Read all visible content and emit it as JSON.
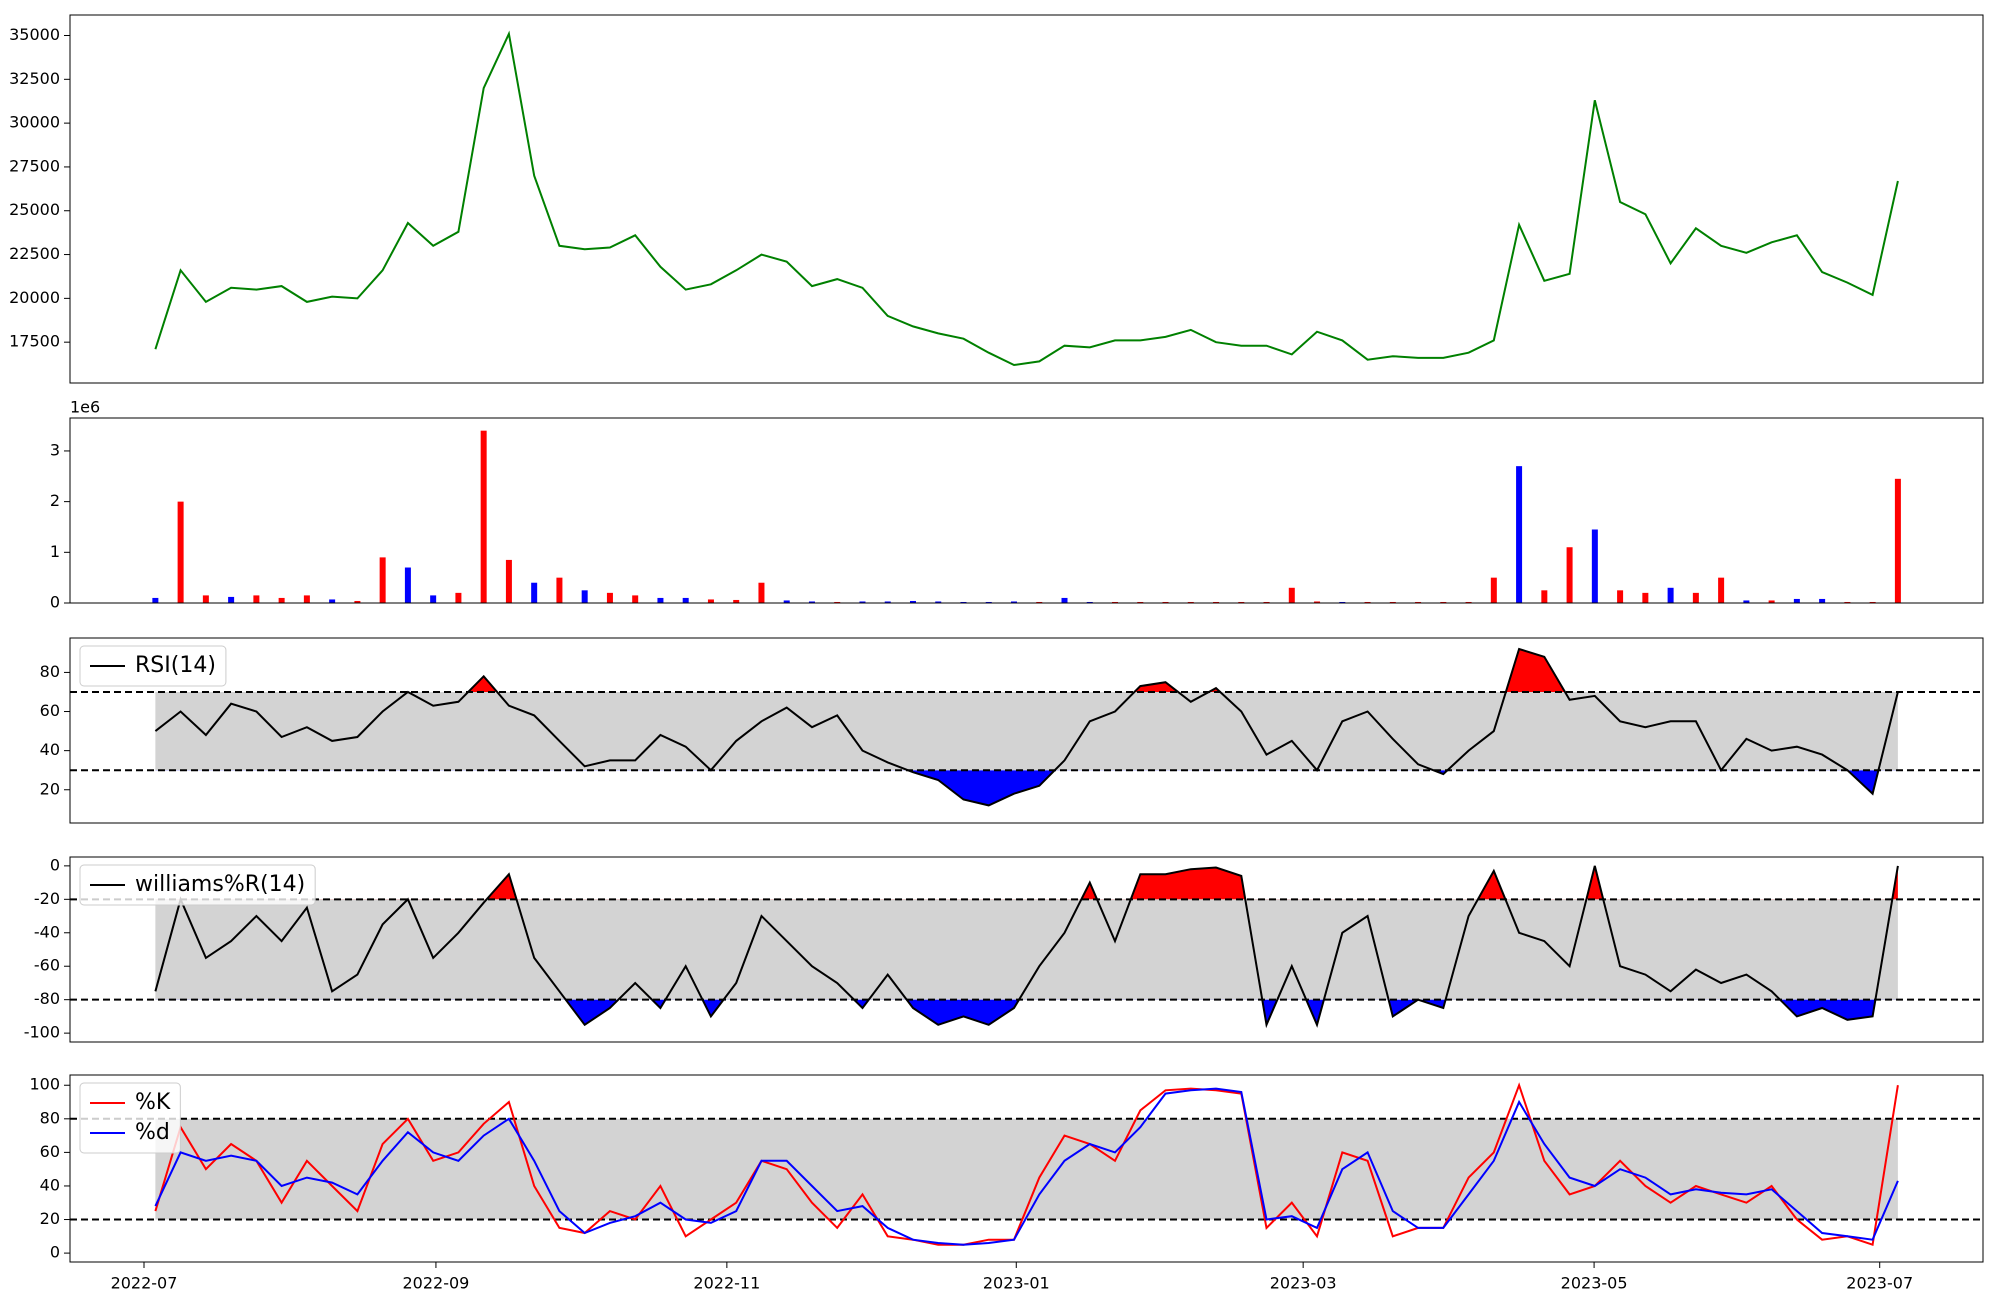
{
  "chart_data": [
    {
      "type": "line",
      "xlim": [
        -3.38,
        72.37
      ],
      "ylim": [
        15170,
        36170
      ],
      "yticks": [
        17500,
        20000,
        22500,
        25000,
        27500,
        30000,
        32500,
        35000
      ],
      "series": [
        {
          "color": "green",
          "values": [
            17100,
            21600,
            19800,
            20600,
            20500,
            20700,
            19800,
            20100,
            20000,
            21600,
            24300,
            23000,
            23800,
            32000,
            35100,
            27000,
            23000,
            22800,
            22900,
            23600,
            21800,
            20500,
            20800,
            21600,
            22500,
            22100,
            20700,
            21100,
            20600,
            19000,
            18400,
            18000,
            17700,
            16900,
            16200,
            16400,
            17300,
            17200,
            17600,
            17600,
            17800,
            18200,
            17500,
            17300,
            17300,
            16800,
            18100,
            17600,
            16500,
            16700,
            16600,
            16600,
            16900,
            17600,
            24200,
            21000,
            21400,
            31300,
            25500,
            24800,
            22000,
            24000,
            23000,
            22600,
            23200,
            23600,
            21500,
            20900,
            20200,
            26700
          ]
        }
      ]
    },
    {
      "type": "bar",
      "xlim": [
        -3.38,
        72.37
      ],
      "ylim": [
        0,
        3650000
      ],
      "offset_label": "1e6",
      "yticks": [
        0,
        {
          "value": 1000000,
          "label": "1"
        },
        {
          "value": 2000000,
          "label": "2"
        },
        {
          "value": 3000000,
          "label": "3"
        }
      ],
      "values": [
        100000,
        2000000,
        150000,
        120000,
        150000,
        100000,
        150000,
        70000,
        40000,
        900000,
        700000,
        150000,
        200000,
        3400000,
        850000,
        400000,
        500000,
        250000,
        200000,
        150000,
        100000,
        100000,
        70000,
        60000,
        400000,
        50000,
        30000,
        20000,
        30000,
        30000,
        40000,
        30000,
        20000,
        20000,
        30000,
        20000,
        100000,
        20000,
        20000,
        20000,
        20000,
        20000,
        20000,
        20000,
        20000,
        300000,
        30000,
        20000,
        20000,
        20000,
        20000,
        20000,
        20000,
        500000,
        2700000,
        250000,
        1100000,
        1450000,
        250000,
        200000,
        300000,
        200000,
        500000,
        50000,
        50000,
        80000,
        80000,
        20000,
        20000,
        2450000
      ],
      "colors": [
        "blue",
        "red",
        "red",
        "blue",
        "red",
        "red",
        "red",
        "blue",
        "red",
        "red",
        "blue",
        "blue",
        "red",
        "red",
        "red",
        "blue",
        "red",
        "blue",
        "red",
        "red",
        "blue",
        "blue",
        "red",
        "red",
        "red",
        "blue",
        "blue",
        "red",
        "blue",
        "blue",
        "blue",
        "blue",
        "blue",
        "blue",
        "blue",
        "red",
        "blue",
        "blue",
        "red",
        "red",
        "red",
        "red",
        "red",
        "red",
        "red",
        "red",
        "red",
        "blue",
        "red",
        "red",
        "red",
        "red",
        "red",
        "red",
        "blue",
        "red",
        "red",
        "blue",
        "red",
        "red",
        "blue",
        "red",
        "red",
        "blue",
        "red",
        "blue",
        "blue",
        "red",
        "red",
        "red"
      ]
    },
    {
      "type": "oscillator",
      "xlim": [
        -3.38,
        72.37
      ],
      "ylim": [
        3,
        97.6
      ],
      "yticks": [
        20,
        40,
        60,
        80
      ],
      "upper": 70,
      "lower": 30,
      "above_color": "red",
      "below_color": "blue",
      "band_color": "lightgray",
      "legend": "upper left",
      "series": [
        {
          "name": "RSI(14)",
          "color": "black",
          "values": [
            50,
            60,
            48,
            64,
            60,
            47,
            52,
            45,
            47,
            60,
            70,
            63,
            65,
            78,
            63,
            58,
            45,
            32,
            35,
            35,
            48,
            42,
            30,
            45,
            55,
            62,
            52,
            58,
            40,
            34,
            29,
            25,
            15,
            12,
            18,
            22,
            35,
            55,
            60,
            73,
            75,
            65,
            72,
            60,
            38,
            45,
            30,
            55,
            60,
            46,
            33,
            28,
            40,
            50,
            92,
            88,
            66,
            68,
            55,
            52,
            55,
            55,
            30,
            46,
            40,
            42,
            38,
            30,
            18,
            70
          ]
        }
      ]
    },
    {
      "type": "oscillator",
      "xlim": [
        -3.38,
        72.37
      ],
      "ylim": [
        -105.3,
        5.3
      ],
      "yticks": [
        -100,
        -80,
        -60,
        -40,
        -20,
        0
      ],
      "upper": -20,
      "lower": -80,
      "above_color": "red",
      "below_color": "blue",
      "band_color": "lightgray",
      "legend": "upper left",
      "series": [
        {
          "name": "williams%R(14)",
          "color": "black",
          "values": [
            -75,
            -20,
            -55,
            -45,
            -30,
            -45,
            -25,
            -75,
            -65,
            -35,
            -20,
            -55,
            -40,
            -22,
            -5,
            -55,
            -75,
            -95,
            -85,
            -70,
            -85,
            -60,
            -90,
            -70,
            -30,
            -45,
            -60,
            -70,
            -85,
            -65,
            -85,
            -95,
            -90,
            -95,
            -85,
            -60,
            -40,
            -10,
            -45,
            -5,
            -5,
            -2,
            -1,
            -6,
            -95,
            -60,
            -95,
            -40,
            -30,
            -90,
            -80,
            -85,
            -30,
            -3,
            -40,
            -45,
            -60,
            0,
            -60,
            -65,
            -75,
            -62,
            -70,
            -65,
            -75,
            -90,
            -85,
            -92,
            -90,
            0
          ]
        }
      ]
    },
    {
      "type": "oscillator",
      "xlim": [
        -3.38,
        72.37
      ],
      "ylim": [
        -5.3,
        106.1
      ],
      "yticks": [
        0,
        20,
        40,
        60,
        80,
        100
      ],
      "upper": 80,
      "lower": 20,
      "band_color": "lightgray",
      "legend": "upper left",
      "xticks": [
        {
          "value": -0.45,
          "label": "2022-07"
        },
        {
          "value": 11.11,
          "label": "2022-09"
        },
        {
          "value": 22.63,
          "label": "2022-11"
        },
        {
          "value": 34.09,
          "label": "2023-01"
        },
        {
          "value": 45.45,
          "label": "2023-03"
        },
        {
          "value": 56.97,
          "label": "2023-05"
        },
        {
          "value": 68.28,
          "label": "2023-07"
        }
      ],
      "series": [
        {
          "name": "%K",
          "color": "red",
          "values": [
            25,
            75,
            50,
            65,
            55,
            30,
            55,
            40,
            25,
            65,
            80,
            55,
            60,
            77,
            90,
            40,
            15,
            12,
            25,
            20,
            40,
            10,
            20,
            30,
            55,
            50,
            30,
            15,
            35,
            10,
            8,
            5,
            5,
            8,
            8,
            45,
            70,
            65,
            55,
            85,
            97,
            98,
            97,
            95,
            15,
            30,
            10,
            60,
            55,
            10,
            15,
            15,
            45,
            60,
            100,
            55,
            35,
            40,
            55,
            40,
            30,
            40,
            35,
            30,
            40,
            20,
            8,
            10,
            5,
            100
          ]
        },
        {
          "name": "%d",
          "color": "blue",
          "values": [
            28,
            60,
            55,
            58,
            55,
            40,
            45,
            42,
            35,
            55,
            72,
            60,
            55,
            70,
            80,
            55,
            25,
            12,
            18,
            22,
            30,
            20,
            18,
            25,
            55,
            55,
            40,
            25,
            28,
            15,
            8,
            6,
            5,
            6,
            8,
            35,
            55,
            65,
            60,
            75,
            95,
            97,
            98,
            96,
            20,
            22,
            15,
            50,
            60,
            25,
            15,
            15,
            35,
            55,
            90,
            65,
            45,
            40,
            50,
            45,
            35,
            38,
            36,
            35,
            38,
            25,
            12,
            10,
            8,
            43
          ]
        }
      ]
    }
  ]
}
